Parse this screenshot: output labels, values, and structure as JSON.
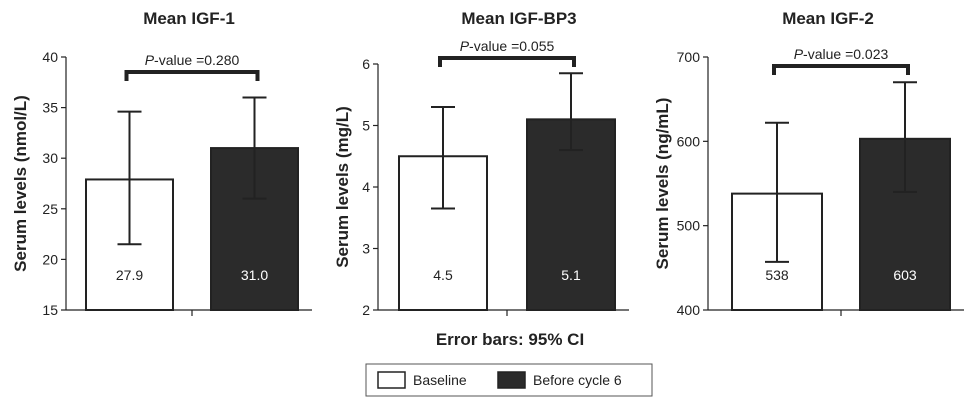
{
  "chart_data": [
    {
      "type": "bar",
      "title": "Mean IGF-1",
      "ylabel": "Serum levels (nmol/L)",
      "ylim": [
        15,
        40
      ],
      "yticks": [
        15,
        20,
        25,
        30,
        35,
        40
      ],
      "series": [
        {
          "name": "Baseline",
          "value": 27.9,
          "value_label": "27.9",
          "ci": [
            21.5,
            34.6
          ]
        },
        {
          "name": "Before cycle 6",
          "value": 31.0,
          "value_label": "31.0",
          "ci": [
            26.0,
            36.0
          ]
        }
      ],
      "annotation": {
        "p_prefix": "P",
        "p_text": "-value =0.280"
      }
    },
    {
      "type": "bar",
      "title": "Mean IGF-BP3",
      "ylabel": "Serum levels (mg/L)",
      "ylim": [
        2,
        6
      ],
      "yticks": [
        2,
        3,
        4,
        5,
        6
      ],
      "series": [
        {
          "name": "Baseline",
          "value": 4.5,
          "value_label": "4.5",
          "ci": [
            3.65,
            5.3
          ]
        },
        {
          "name": "Before cycle 6",
          "value": 5.1,
          "value_label": "5.1",
          "ci": [
            4.6,
            5.85
          ]
        }
      ],
      "annotation": {
        "p_prefix": "P",
        "p_text": "-value =0.055"
      }
    },
    {
      "type": "bar",
      "title": "Mean IGF-2",
      "ylabel": "Serum levels (ng/mL)",
      "ylim": [
        400,
        700
      ],
      "yticks": [
        400,
        500,
        600,
        700
      ],
      "series": [
        {
          "name": "Baseline",
          "value": 538,
          "value_label": "538",
          "ci": [
            457,
            622
          ]
        },
        {
          "name": "Before cycle 6",
          "value": 603,
          "value_label": "603",
          "ci": [
            540,
            670
          ]
        }
      ],
      "annotation": {
        "p_prefix": "P",
        "p_text": "-value =0.023"
      }
    }
  ],
  "footer": {
    "error_bars": "Error bars: 95% CI"
  },
  "legend": {
    "placement": "bottom-center",
    "items": [
      {
        "label": "Baseline",
        "fill": "#ffffff"
      },
      {
        "label": "Before cycle 6",
        "fill": "#2b2b2b"
      }
    ]
  },
  "colors": {
    "baseline": "#ffffff",
    "after": "#2b2b2b",
    "ink": "#222222"
  }
}
